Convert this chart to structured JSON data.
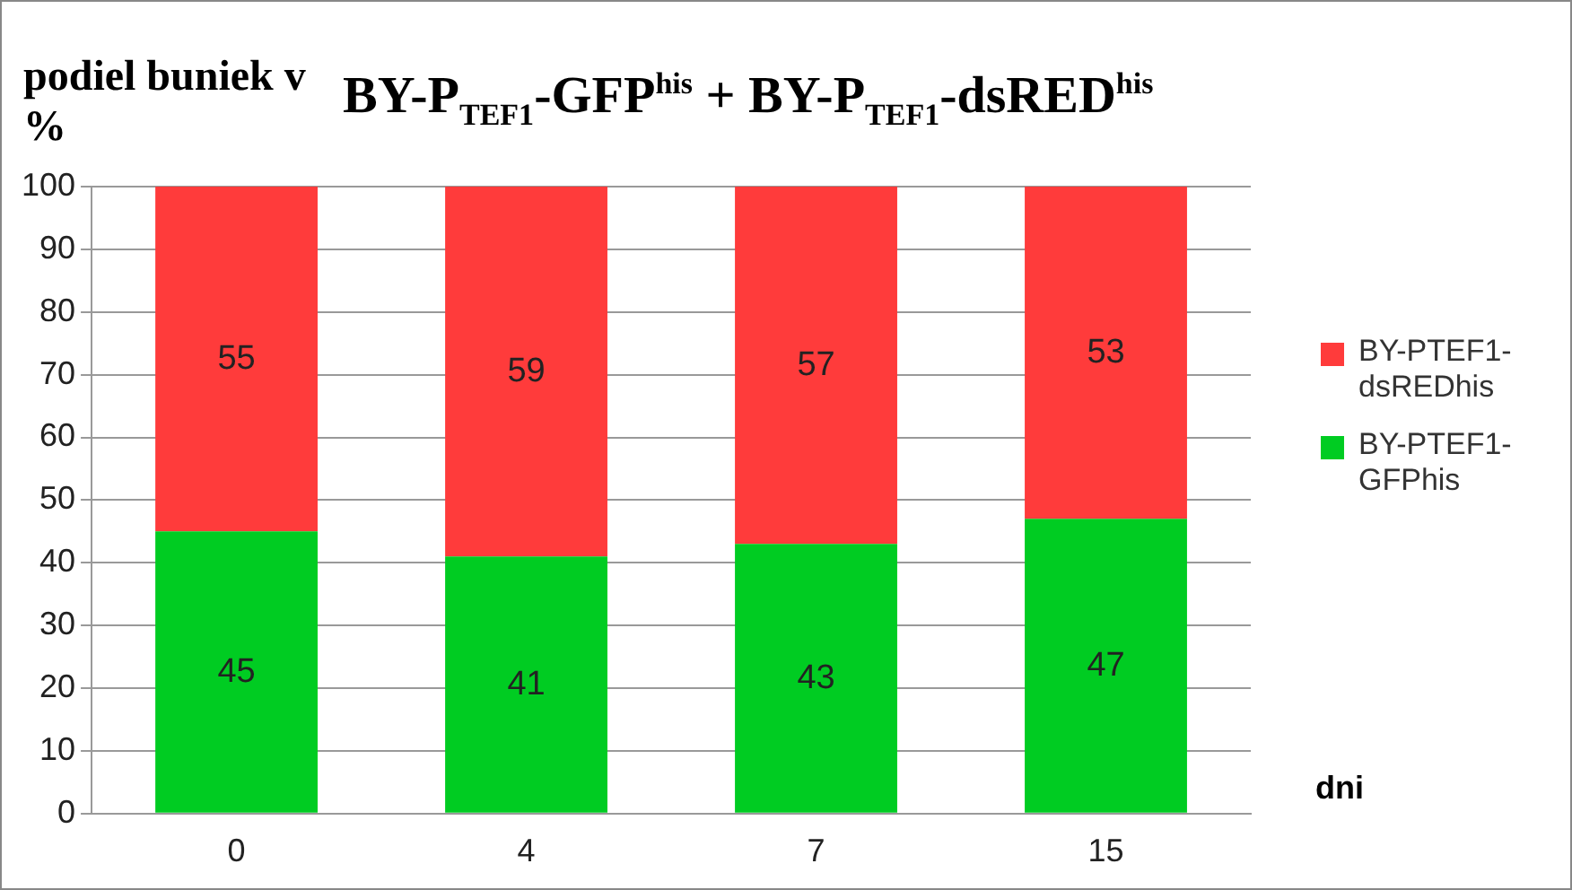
{
  "chart_data": {
    "type": "bar",
    "title": "BY-P$_{TEF1}$-GFP$^{his}$ + BY-P$_{TEF1}$-dsRED$^{his}$",
    "ylabel": "podiel buniek v %",
    "xlabel": "dni",
    "categories": [
      "0",
      "4",
      "7",
      "15"
    ],
    "series": [
      {
        "name": "BY-PTEF1-GFPhis",
        "color": "#00cc22",
        "values": [
          45,
          41,
          43,
          47
        ]
      },
      {
        "name": "BY-PTEF1-dsREDhis",
        "color": "#ff3b3b",
        "values": [
          55,
          59,
          57,
          53
        ]
      }
    ],
    "stacked": true,
    "ylim": [
      0,
      100
    ],
    "yticks": [
      0,
      10,
      20,
      30,
      40,
      50,
      60,
      70,
      80,
      90,
      100
    ],
    "grid": "y",
    "legend": "right",
    "data_labels": true
  }
}
